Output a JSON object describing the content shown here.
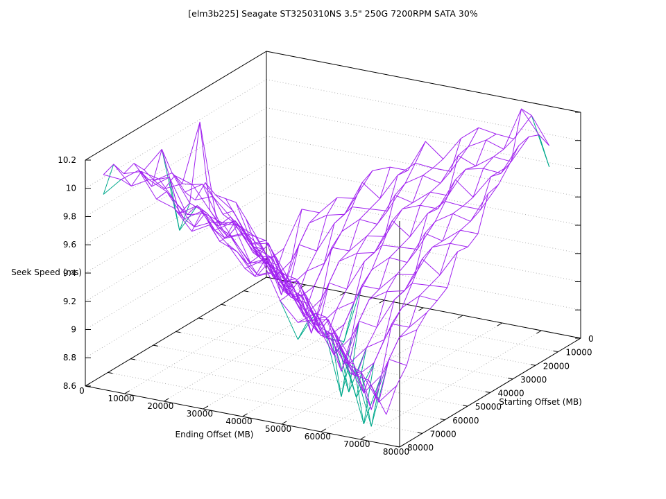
{
  "chart_data": {
    "type": "surface3d",
    "title": "[elm3b225] Seagate ST3250310NS 3.5\" 250G 7200RPM SATA 30%",
    "xlabel": "Ending Offset (MB)",
    "ylabel": "Starting Offset (MB)",
    "zlabel": "Seek Speed (ms)",
    "xlim": [
      0,
      80000
    ],
    "ylim": [
      0,
      80000
    ],
    "zlim": [
      8.6,
      10.2
    ],
    "xticks": [
      0,
      10000,
      20000,
      30000,
      40000,
      50000,
      60000,
      70000,
      80000
    ],
    "yticks": [
      0,
      10000,
      20000,
      30000,
      40000,
      50000,
      60000,
      70000,
      80000
    ],
    "zticks": [
      8.6,
      8.8,
      9,
      9.2,
      9.4,
      9.6,
      9.8,
      10,
      10.2
    ],
    "grid_on": true,
    "legend": "none",
    "surface_color": "#a020f0",
    "underside_color": "#00a98c",
    "box_color": "#000000",
    "grid_color": "#b2b2b2",
    "data_extent_mb": 72000,
    "grid_points": 17,
    "z_grid": [
      [
        8.71,
        8.83,
        9.13,
        9.13,
        9.26,
        9.28,
        9.5,
        9.55,
        9.55,
        9.78,
        9.68,
        9.85,
        9.95,
        9.93,
        9.92,
        10.11,
        9.92
      ],
      [
        8.86,
        8.66,
        8.81,
        9.1,
        9.18,
        9.21,
        9.46,
        9.37,
        9.56,
        9.67,
        9.66,
        9.66,
        9.86,
        9.93,
        9.89,
        10.2,
        10.04
      ],
      [
        9.1,
        8.91,
        8.61,
        8.99,
        8.97,
        9.19,
        9.33,
        9.34,
        9.35,
        9.57,
        9.65,
        9.62,
        9.84,
        9.79,
        9.88,
        9.87,
        10.07
      ],
      [
        9.26,
        8.97,
        8.92,
        8.73,
        8.87,
        8.95,
        9.2,
        9.31,
        9.3,
        9.53,
        9.5,
        9.6,
        9.6,
        9.81,
        9.84,
        9.83,
        10.05
      ],
      [
        9.33,
        9.14,
        8.95,
        8.93,
        8.71,
        8.83,
        9.13,
        9.13,
        9.26,
        9.28,
        9.5,
        9.55,
        9.55,
        9.78,
        9.68,
        9.85,
        9.95
      ],
      [
        9.4,
        9.31,
        9.1,
        9.13,
        8.86,
        8.66,
        8.81,
        9.1,
        9.18,
        9.21,
        9.46,
        9.37,
        9.56,
        9.67,
        9.66,
        9.66,
        9.86
      ],
      [
        9.53,
        9.33,
        9.26,
        9.08,
        9.1,
        8.91,
        8.61,
        8.99,
        8.97,
        9.19,
        9.33,
        9.34,
        9.35,
        9.57,
        9.65,
        9.62,
        9.84
      ],
      [
        9.45,
        9.5,
        9.38,
        9.21,
        9.26,
        8.97,
        8.92,
        8.73,
        8.87,
        8.95,
        9.2,
        9.31,
        9.3,
        9.53,
        9.5,
        9.6,
        9.6
      ],
      [
        9.55,
        9.63,
        9.37,
        9.39,
        9.33,
        9.14,
        8.95,
        8.93,
        8.71,
        8.83,
        9.13,
        9.13,
        9.26,
        9.28,
        9.5,
        9.55,
        9.55
      ],
      [
        9.71,
        9.67,
        9.51,
        9.35,
        9.4,
        9.31,
        9.1,
        9.13,
        8.86,
        8.66,
        8.81,
        9.1,
        9.18,
        9.21,
        9.46,
        9.37,
        9.56
      ],
      [
        9.66,
        9.72,
        10.18,
        9.47,
        9.53,
        9.33,
        9.26,
        9.08,
        9.1,
        8.91,
        8.61,
        8.99,
        8.97,
        9.19,
        9.33,
        9.34,
        9.35
      ],
      [
        9.76,
        9.84,
        9.65,
        9.6,
        9.45,
        9.5,
        9.38,
        9.21,
        9.26,
        8.97,
        8.92,
        8.73,
        8.87,
        8.95,
        9.2,
        9.31,
        9.3
      ],
      [
        9.88,
        10.05,
        9.62,
        9.7,
        9.55,
        9.63,
        9.37,
        9.39,
        9.33,
        9.14,
        8.95,
        8.93,
        8.71,
        8.83,
        9.13,
        9.13,
        9.26
      ],
      [
        9.97,
        9.83,
        9.92,
        9.68,
        9.71,
        9.67,
        9.51,
        9.35,
        9.4,
        9.31,
        9.1,
        9.13,
        8.86,
        8.66,
        8.81,
        9.1,
        9.18
      ],
      [
        9.94,
        9.98,
        9.95,
        9.8,
        9.66,
        9.72,
        9.65,
        9.47,
        9.53,
        9.33,
        9.26,
        9.08,
        9.1,
        8.91,
        8.61,
        8.99,
        8.97
      ],
      [
        10.05,
        9.92,
        9.99,
        9.93,
        9.76,
        9.84,
        9.65,
        9.6,
        9.45,
        9.5,
        9.38,
        9.21,
        9.26,
        8.97,
        8.92,
        8.73,
        8.87
      ],
      [
        10.02,
        10.01,
        10.1,
        9.92,
        9.88,
        9.74,
        9.81,
        9.7,
        9.55,
        9.63,
        9.37,
        9.24,
        9.33,
        9.14,
        8.95,
        8.93,
        8.71
      ]
    ],
    "underside_dips": [
      {
        "i": 10,
        "j": 10,
        "depth": 0.18
      },
      {
        "i": 11,
        "j": 11,
        "depth": 0.2
      },
      {
        "i": 12,
        "j": 12,
        "depth": 0.15
      },
      {
        "i": 13,
        "j": 13,
        "depth": 0.22
      },
      {
        "i": 14,
        "j": 14,
        "depth": 0.12
      },
      {
        "i": 9,
        "j": 8,
        "depth": 0.12
      },
      {
        "i": 0,
        "j": 16,
        "depth": 0.14
      },
      {
        "i": 2,
        "j": 12,
        "depth": 0.12
      },
      {
        "i": 16,
        "j": 0,
        "depth": 0.15
      },
      {
        "i": 11,
        "j": 16,
        "depth": 0.12
      }
    ]
  }
}
